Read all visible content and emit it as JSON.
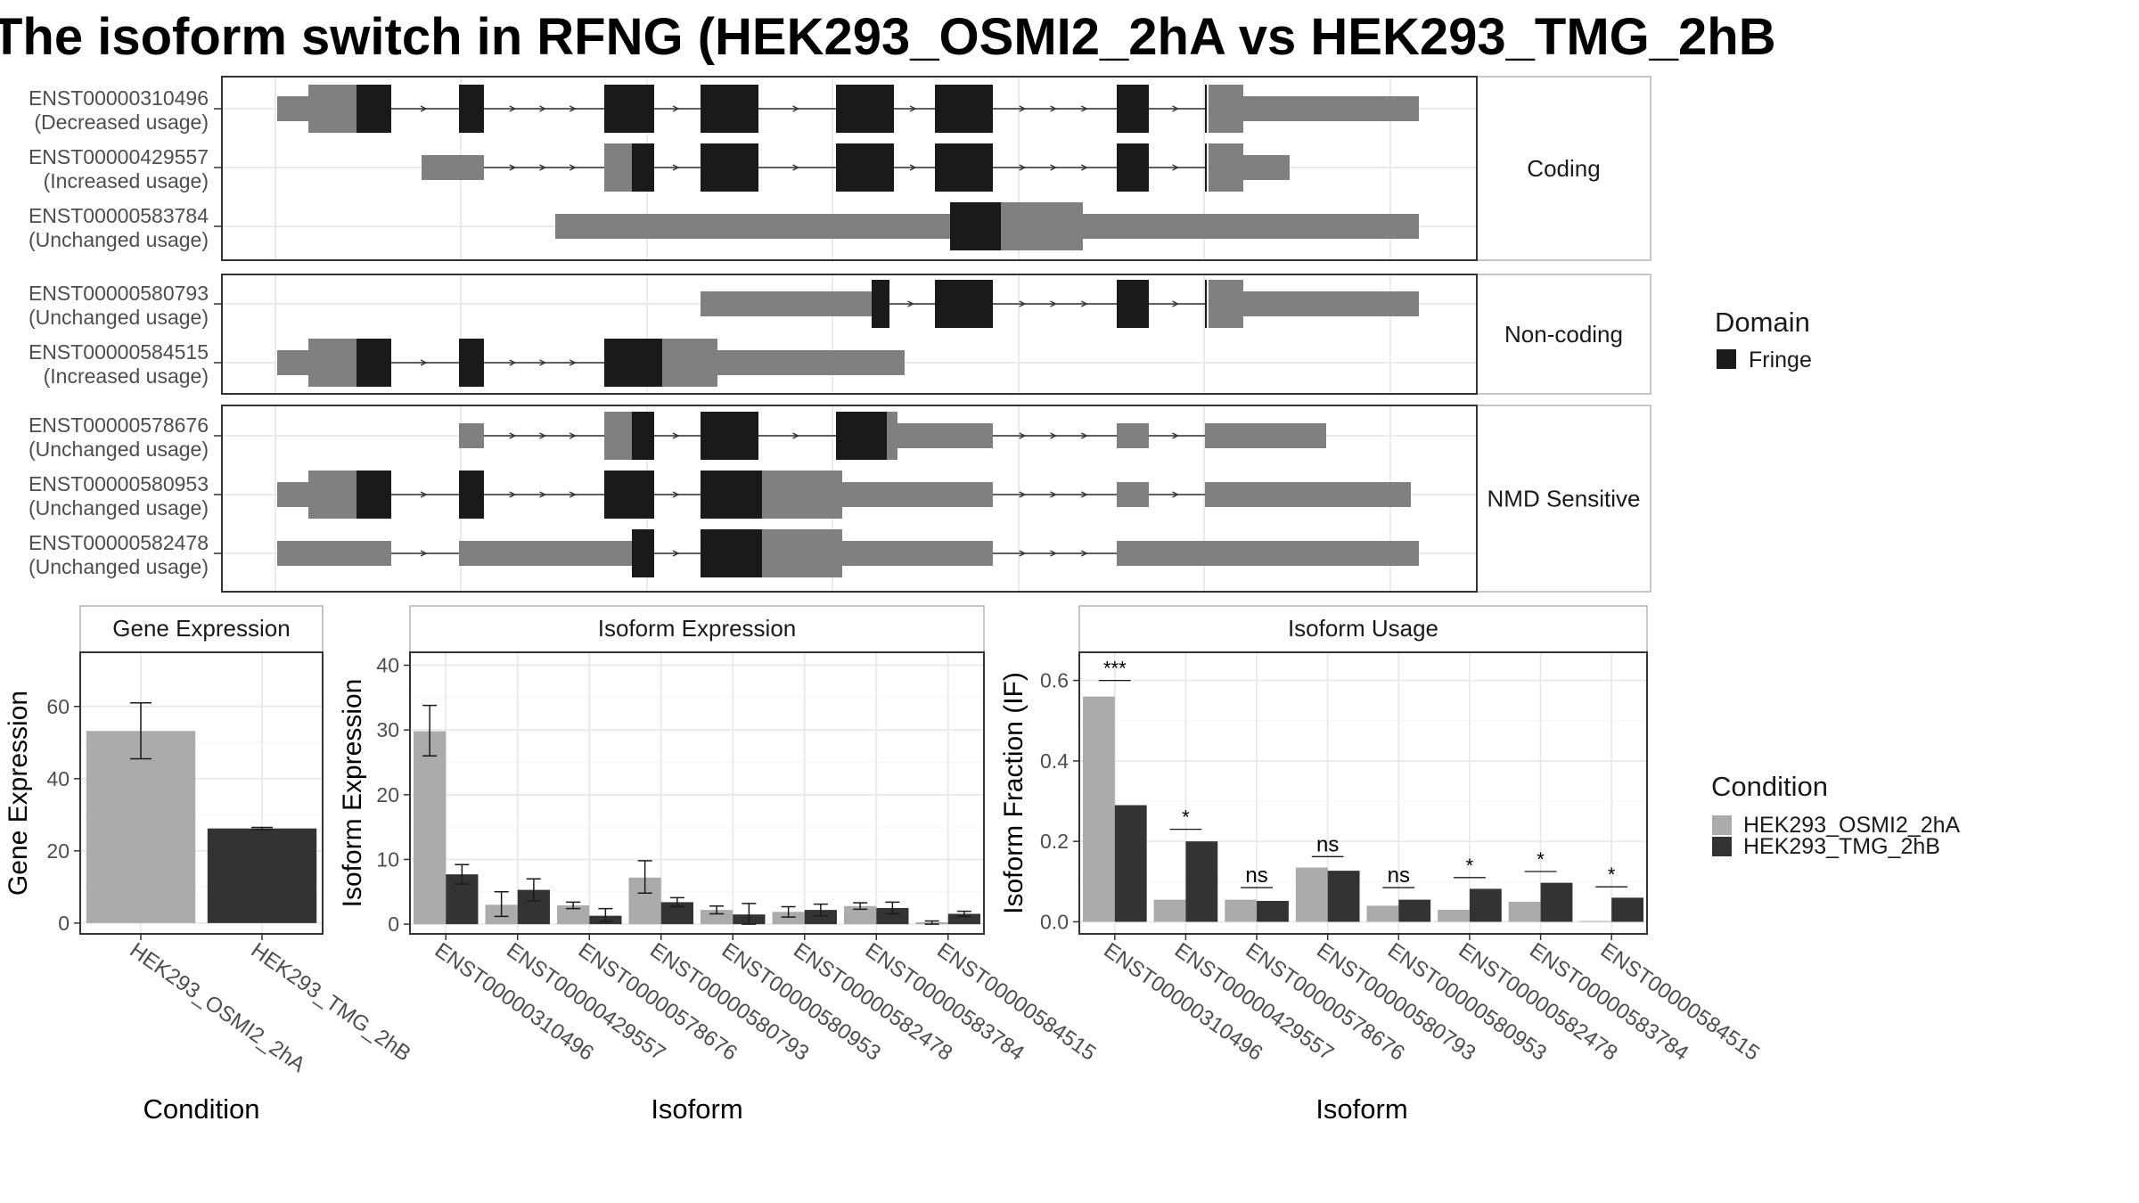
{
  "title": "The isoform switch in RFNG (HEK293_OSMI2_2hA vs HEK293_TMG_2hB",
  "colors": {
    "exon_dark": "#1a1a1a",
    "exon_gray": "#808080",
    "cond_a": "#ababab",
    "cond_b": "#333333",
    "grid": "#ebebeb",
    "border": "#333333"
  },
  "transcript_panels": [
    {
      "facet": "Coding",
      "transcripts": [
        {
          "id": "ENST00000310496",
          "usage": "(Decreased usage)"
        },
        {
          "id": "ENST00000429557",
          "usage": "(Increased usage)"
        },
        {
          "id": "ENST00000583784",
          "usage": "(Unchanged usage)"
        }
      ]
    },
    {
      "facet": "Non-coding",
      "transcripts": [
        {
          "id": "ENST00000580793",
          "usage": "(Unchanged usage)"
        },
        {
          "id": "ENST00000584515",
          "usage": "(Increased usage)"
        }
      ]
    },
    {
      "facet": "NMD Sensitive",
      "transcripts": [
        {
          "id": "ENST00000578676",
          "usage": "(Unchanged usage)"
        },
        {
          "id": "ENST00000580953",
          "usage": "(Unchanged usage)"
        },
        {
          "id": "ENST00000582478",
          "usage": "(Unchanged usage)"
        }
      ]
    }
  ],
  "domain_legend": {
    "title": "Domain",
    "items": [
      {
        "label": "Fringe",
        "color": "#1a1a1a"
      }
    ]
  },
  "condition_legend": {
    "title": "Condition",
    "items": [
      {
        "label": "HEK293_OSMI2_2hA",
        "color": "#ababab"
      },
      {
        "label": "HEK293_TMG_2hB",
        "color": "#333333"
      }
    ]
  },
  "chart_data": [
    {
      "type": "bar",
      "title": "Gene Expression",
      "xlabel": "Condition",
      "ylabel": "Gene Expression",
      "categories": [
        "HEK293_OSMI2_2hA",
        "HEK293_TMG_2hB"
      ],
      "values": [
        53.2,
        26.2
      ],
      "errors": [
        [
          45.5,
          61.0
        ],
        [
          25.9,
          26.5
        ]
      ],
      "ylim": [
        -3,
        75
      ],
      "yticks": [
        0,
        20,
        40,
        60
      ]
    },
    {
      "type": "bar",
      "title": "Isoform Expression",
      "xlabel": "Isoform",
      "ylabel": "Isoform Expression",
      "categories": [
        "ENST00000310496",
        "ENST00000429557",
        "ENST00000578676",
        "ENST00000580793",
        "ENST00000580953",
        "ENST00000582478",
        "ENST00000583784",
        "ENST00000584515"
      ],
      "series": [
        {
          "name": "HEK293_OSMI2_2hA",
          "values": [
            29.8,
            3.0,
            2.9,
            7.2,
            2.2,
            1.9,
            2.8,
            0.3
          ],
          "errors": [
            [
              26.0,
              33.8
            ],
            [
              1.2,
              5.0
            ],
            [
              2.4,
              3.4
            ],
            [
              4.8,
              9.8
            ],
            [
              1.6,
              2.8
            ],
            [
              1.1,
              2.7
            ],
            [
              2.3,
              3.3
            ],
            [
              0.0,
              0.5
            ]
          ]
        },
        {
          "name": "HEK293_TMG_2hB",
          "values": [
            7.7,
            5.3,
            1.3,
            3.4,
            1.5,
            2.2,
            2.5,
            1.6
          ],
          "errors": [
            [
              6.2,
              9.2
            ],
            [
              3.6,
              7.0
            ],
            [
              0.4,
              2.4
            ],
            [
              2.7,
              4.1
            ],
            [
              0.0,
              3.2
            ],
            [
              1.3,
              3.1
            ],
            [
              1.6,
              3.4
            ],
            [
              1.2,
              2.0
            ]
          ]
        }
      ],
      "ylim": [
        -1.5,
        42
      ],
      "yticks": [
        0,
        10,
        20,
        30,
        40
      ]
    },
    {
      "type": "bar",
      "title": "Isoform Usage",
      "xlabel": "Isoform",
      "ylabel": "Isoform Fraction (IF)",
      "categories": [
        "ENST00000310496",
        "ENST00000429557",
        "ENST00000578676",
        "ENST00000580793",
        "ENST00000580953",
        "ENST00000582478",
        "ENST00000583784",
        "ENST00000584515"
      ],
      "series": [
        {
          "name": "HEK293_OSMI2_2hA",
          "values": [
            0.56,
            0.055,
            0.055,
            0.135,
            0.04,
            0.03,
            0.05,
            0.002
          ]
        },
        {
          "name": "HEK293_TMG_2hB",
          "values": [
            0.29,
            0.2,
            0.052,
            0.127,
            0.055,
            0.082,
            0.097,
            0.06
          ]
        }
      ],
      "significance": [
        "***",
        "*",
        "ns",
        "ns",
        "ns",
        "*",
        "*",
        "*"
      ],
      "sig_y": [
        0.6,
        0.23,
        0.085,
        0.162,
        0.085,
        0.11,
        0.125,
        0.087
      ],
      "ylim": [
        -0.03,
        0.67
      ],
      "yticks": [
        0.0,
        0.2,
        0.4,
        0.6
      ],
      "ytick_labels": [
        "0.0",
        "0.2",
        "0.4",
        "0.6"
      ]
    }
  ]
}
